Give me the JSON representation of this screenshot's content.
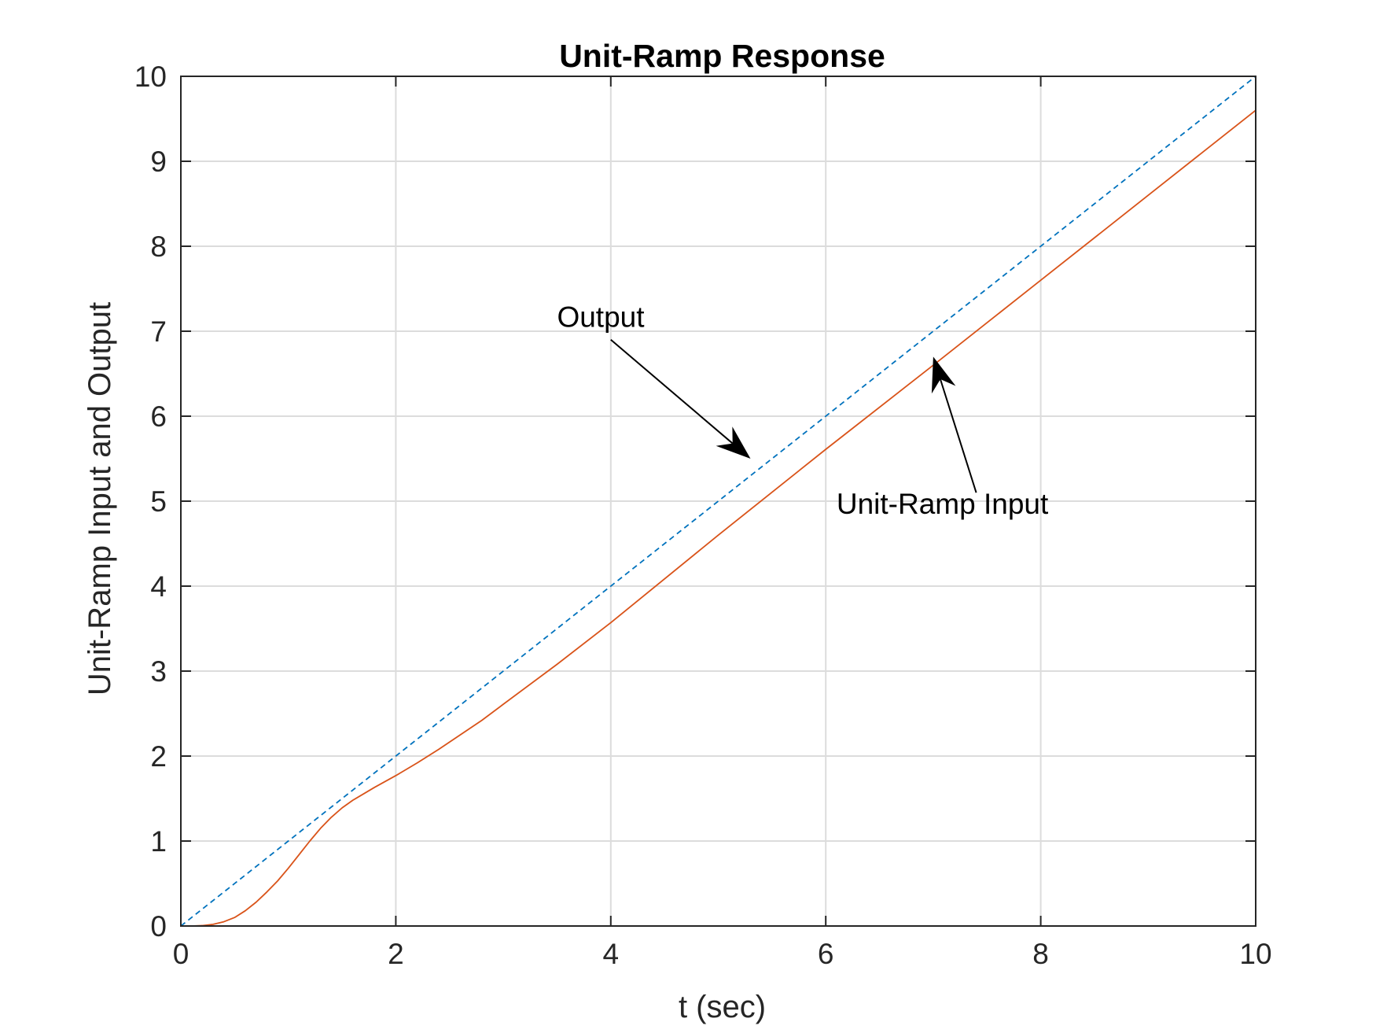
{
  "chart_data": {
    "type": "line",
    "title": "Unit-Ramp Response",
    "xlabel": "t (sec)",
    "ylabel": "Unit-Ramp Input and Output",
    "xlim": [
      0,
      10
    ],
    "ylim": [
      0,
      10
    ],
    "xticks": [
      0,
      2,
      4,
      6,
      8,
      10
    ],
    "yticks": [
      0,
      1,
      2,
      3,
      4,
      5,
      6,
      7,
      8,
      9,
      10
    ],
    "xtick_labels": [
      "0",
      "2",
      "4",
      "6",
      "8",
      "10"
    ],
    "ytick_labels": [
      "0",
      "1",
      "2",
      "3",
      "4",
      "5",
      "6",
      "7",
      "8",
      "9",
      "10"
    ],
    "grid": true,
    "box": true,
    "series": [
      {
        "style": "dashed",
        "color": "#0072BD",
        "x": [
          0,
          10
        ],
        "y": [
          0,
          10
        ]
      },
      {
        "style": "solid",
        "color": "#D95319",
        "x": [
          0,
          0.1,
          0.2,
          0.3,
          0.4,
          0.5,
          0.6,
          0.7,
          0.8,
          0.9,
          1.0,
          1.1,
          1.2,
          1.3,
          1.4,
          1.5,
          1.6,
          1.8,
          2.0,
          2.2,
          2.4,
          2.6,
          2.8,
          3.0,
          3.5,
          4.0,
          5.0,
          6.0,
          7.0,
          8.0,
          9.0,
          10.0
        ],
        "y": [
          0,
          0.0,
          0.005,
          0.02,
          0.05,
          0.1,
          0.18,
          0.28,
          0.4,
          0.53,
          0.68,
          0.84,
          1.0,
          1.15,
          1.28,
          1.39,
          1.48,
          1.63,
          1.77,
          1.92,
          2.08,
          2.25,
          2.42,
          2.61,
          3.08,
          3.57,
          4.6,
          5.61,
          6.6,
          7.6,
          8.6,
          9.6
        ]
      }
    ],
    "annotations": [
      {
        "text": "Output",
        "text_x": 3.5,
        "text_y": 7.05,
        "arrow_from": [
          4.0,
          6.9
        ],
        "arrow_to": [
          5.3,
          5.5
        ]
      },
      {
        "text": "Unit-Ramp Input",
        "text_x": 6.1,
        "text_y": 4.85,
        "arrow_from": [
          7.4,
          5.1
        ],
        "arrow_to": [
          7.0,
          6.7
        ]
      }
    ]
  }
}
